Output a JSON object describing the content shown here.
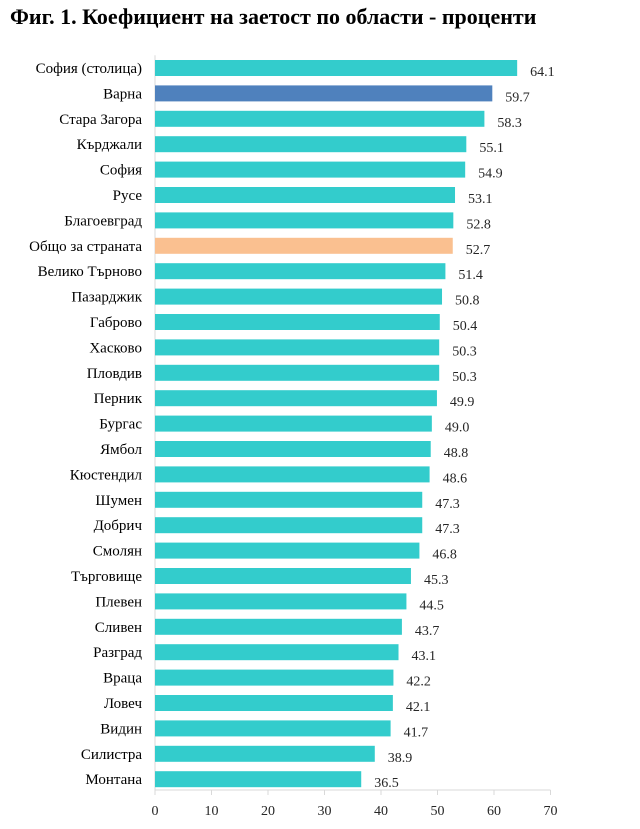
{
  "chart_data": {
    "type": "bar",
    "orientation": "horizontal",
    "title": "Фиг. 1. Коефициент на заетост по области - проценти",
    "xlabel": "",
    "ylabel": "",
    "xlim": [
      0,
      70
    ],
    "x_ticks": [
      0,
      10,
      20,
      30,
      40,
      50,
      60,
      70
    ],
    "grid": false,
    "legend": "none",
    "categories": [
      "София (столица)",
      "Варна",
      "Стара Загора",
      "Кърджали",
      "София",
      "Русе",
      "Благоевград",
      "Общо за страната",
      "Велико Търново",
      "Пазарджик",
      "Габрово",
      "Хасково",
      "Пловдив",
      "Перник",
      "Бургас",
      "Ямбол",
      "Кюстендил",
      "Шумен",
      "Добрич",
      "Смолян",
      "Търговище",
      "Плевен",
      "Сливен",
      "Разград",
      "Враца",
      "Ловеч",
      "Видин",
      "Силистра",
      "Монтана"
    ],
    "values": [
      64.1,
      59.7,
      58.3,
      55.1,
      54.9,
      53.1,
      52.8,
      52.7,
      51.4,
      50.8,
      50.4,
      50.3,
      50.3,
      49.9,
      49.0,
      48.8,
      48.6,
      47.3,
      47.3,
      46.8,
      45.3,
      44.5,
      43.7,
      43.1,
      42.2,
      42.1,
      41.7,
      38.9,
      36.5
    ],
    "value_labels": [
      "64.1",
      "59.7",
      "58.3",
      "55.1",
      "54.9",
      "53.1",
      "52.8",
      "52.7",
      "51.4",
      "50.8",
      "50.4",
      "50.3",
      "50.3",
      "49.9",
      "49.0",
      "48.8",
      "48.6",
      "47.3",
      "47.3",
      "46.8",
      "45.3",
      "44.5",
      "43.7",
      "43.1",
      "42.2",
      "42.1",
      "41.7",
      "38.9",
      "36.5"
    ],
    "colors": {
      "default": "#33CCCC",
      "highlight": "#4F81BD",
      "total": "#FAC090"
    },
    "bar_colors": [
      "default",
      "highlight",
      "default",
      "default",
      "default",
      "default",
      "default",
      "total",
      "default",
      "default",
      "default",
      "default",
      "default",
      "default",
      "default",
      "default",
      "default",
      "default",
      "default",
      "default",
      "default",
      "default",
      "default",
      "default",
      "default",
      "default",
      "default",
      "default",
      "default"
    ]
  }
}
